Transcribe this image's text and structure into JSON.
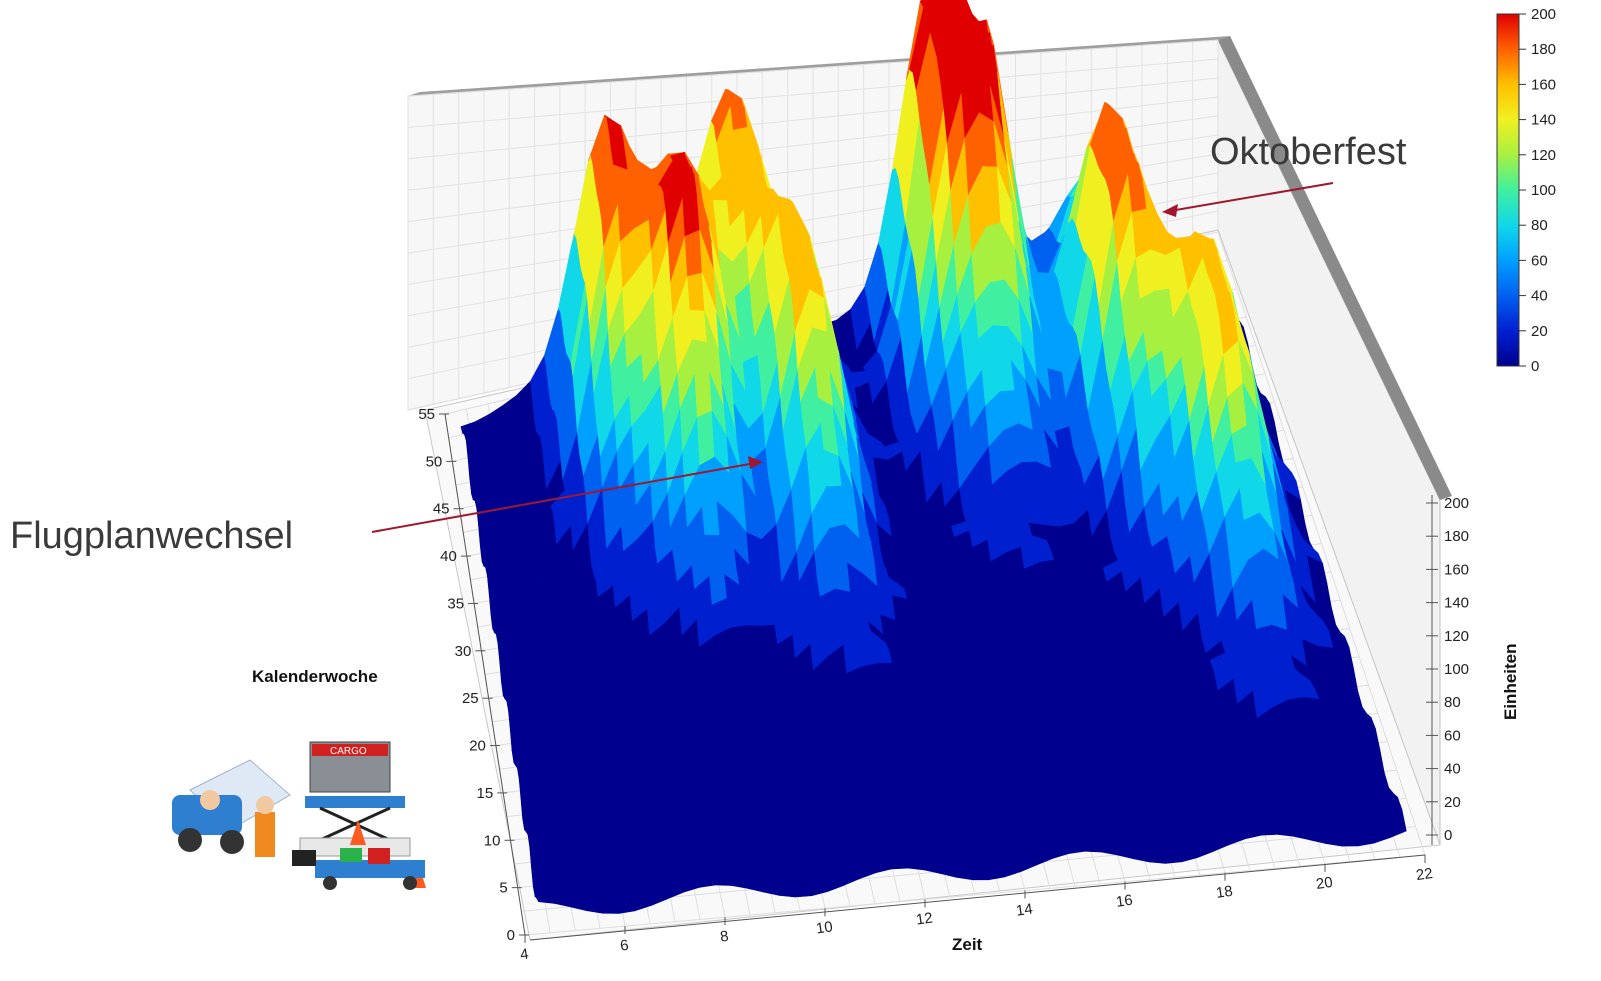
{
  "chart_data": {
    "type": "surface3d",
    "title": "",
    "xlabel": "Zeit",
    "ylabel": "Kalenderwoche",
    "zlabel": "Einheiten",
    "x_ticks": [
      4,
      6,
      8,
      10,
      12,
      14,
      16,
      18,
      20,
      22
    ],
    "y_ticks": [
      0,
      5,
      10,
      15,
      20,
      25,
      30,
      35,
      40,
      45,
      50,
      55
    ],
    "z_ticks": [
      0,
      20,
      40,
      60,
      80,
      100,
      120,
      140,
      160,
      180,
      200
    ],
    "xlim": [
      4,
      22
    ],
    "ylim": [
      0,
      55
    ],
    "zlim": [
      0,
      200
    ],
    "colorbar": {
      "ticks": [
        0,
        20,
        40,
        60,
        80,
        100,
        120,
        140,
        160,
        180,
        200
      ],
      "colors": [
        "#00008f",
        "#0020d0",
        "#0060f0",
        "#00a0ff",
        "#10d8e8",
        "#40f0a0",
        "#a8f040",
        "#f0f020",
        "#ffc000",
        "#ff6000",
        "#e00000"
      ]
    },
    "grid": true,
    "peaks": [
      {
        "x": 7.5,
        "y": 48,
        "z": 175
      },
      {
        "x": 9,
        "y": 42,
        "z": 180
      },
      {
        "x": 10.5,
        "y": 52,
        "z": 150
      },
      {
        "x": 11.5,
        "y": 38,
        "z": 145
      },
      {
        "x": 15,
        "y": 50,
        "z": 170
      },
      {
        "x": 16,
        "y": 48,
        "z": 178
      },
      {
        "x": 18.5,
        "y": 40,
        "z": 178
      },
      {
        "x": 20,
        "y": 30,
        "z": 150
      }
    ],
    "annotations": [
      {
        "text": "Oktoberfest",
        "x": 16.5,
        "y": 51,
        "z": 178
      },
      {
        "text": "Flugplanwechsel",
        "x": 9,
        "y": 43,
        "z": 180
      }
    ]
  }
}
